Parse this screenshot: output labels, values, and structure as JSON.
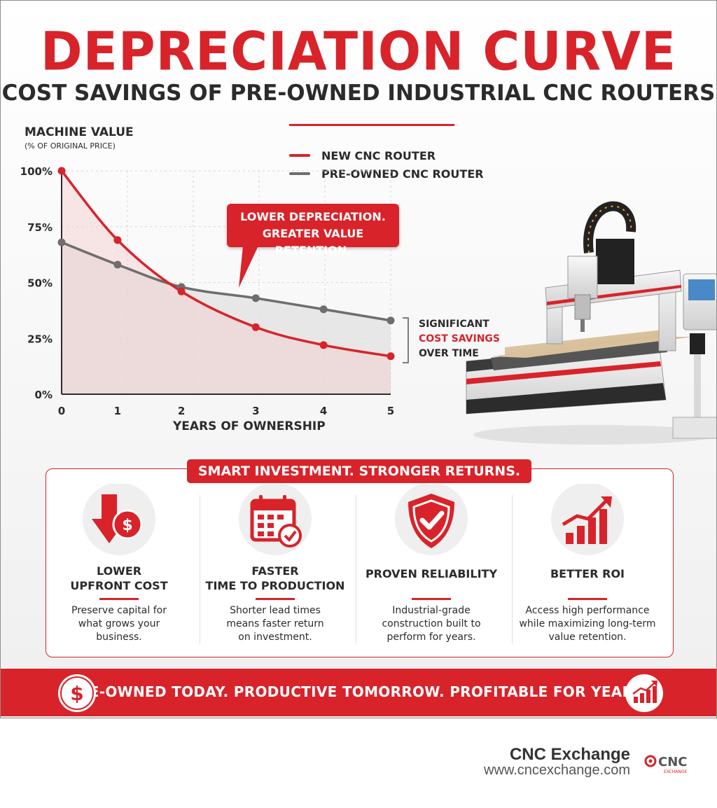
{
  "header": {
    "title": "DEPRECIATION CURVE",
    "subtitle": "COST SAVINGS OF PRE-OWNED INDUSTRIAL CNC ROUTERS"
  },
  "chart_data": {
    "type": "line",
    "ylabel": "MACHINE VALUE",
    "ylabel_sub": "(% OF ORIGINAL PRICE)",
    "xlabel": "YEARS OF OWNERSHIP",
    "x": [
      0,
      1,
      2,
      3,
      4,
      5
    ],
    "x_tick_labels": [
      "0",
      "1",
      "2",
      "3",
      "4",
      "5"
    ],
    "y_tick_labels": [
      "100%",
      "75%",
      "50%",
      "25%",
      "0%"
    ],
    "y_ticks": [
      100,
      75,
      50,
      25,
      0
    ],
    "xlim": [
      0,
      5
    ],
    "ylim": [
      0,
      100
    ],
    "grid": true,
    "series": [
      {
        "name": "NEW CNC ROUTER",
        "color": "#d8232a",
        "x": [
          0,
          0.85,
          1.82,
          2.95,
          3.98,
          5.0
        ],
        "values": [
          100,
          69,
          46,
          30,
          22,
          17
        ]
      },
      {
        "name": "PRE-OWNED CNC ROUTER",
        "color": "#6e6e6e",
        "x": [
          0,
          0.85,
          1.82,
          2.95,
          3.98,
          5.0
        ],
        "values": [
          68,
          58,
          48,
          43,
          38,
          33
        ]
      }
    ],
    "callout": [
      "LOWER DEPRECIATION.",
      "GREATER VALUE RETENTION."
    ],
    "annotation": {
      "line1": "SIGNIFICANT",
      "line2": "COST SAVINGS",
      "line3": "OVER TIME"
    }
  },
  "panel": {
    "heading": "SMART INVESTMENT. STRONGER RETURNS.",
    "features": [
      {
        "icon": "money-down-icon",
        "title": "LOWER\nUPFRONT COST",
        "desc": "Preserve capital for\nwhat grows your\nbusiness."
      },
      {
        "icon": "calendar-check-icon",
        "title": "FASTER\nTIME TO PRODUCTION",
        "desc": "Shorter lead times\nmeans faster return\non investment."
      },
      {
        "icon": "shield-check-icon",
        "title": "PROVEN RELIABILITY",
        "desc": "Industrial-grade\nconstruction built to\nperform for years."
      },
      {
        "icon": "growth-chart-icon",
        "title": "BETTER ROI",
        "desc": "Access high performance\nwhile maximizing long-term\nvalue retention."
      }
    ]
  },
  "banner": {
    "text": "PRE-OWNED TODAY. PRODUCTIVE TOMORROW. PROFITABLE FOR YEARS.",
    "left_icon": "dollar-icon",
    "right_icon": "growth-chart-icon"
  },
  "footer": {
    "brand": "CNC Exchange",
    "url": "www.cncexchange.com",
    "logo_text": "CNC",
    "logo_sub": "EXCHANGE"
  },
  "colors": {
    "accent": "#d8232a",
    "gray": "#6e6e6e"
  }
}
